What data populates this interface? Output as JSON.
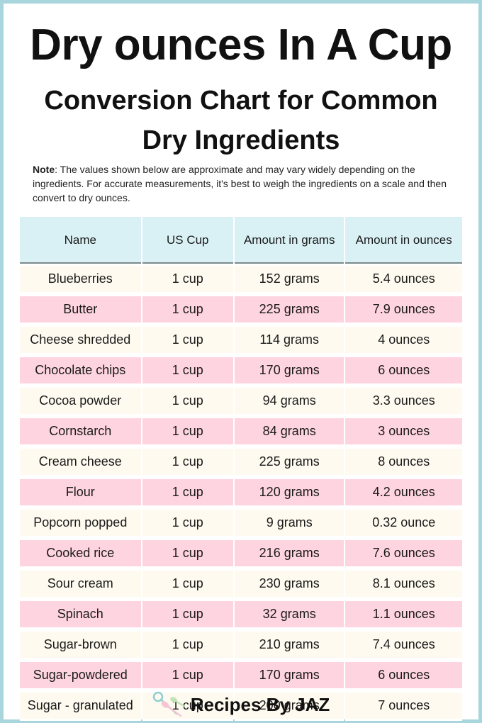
{
  "title": "Dry ounces In A Cup",
  "subtitle_line1": "Conversion Chart for Common",
  "subtitle_line2": "Dry Ingredients",
  "note": {
    "label": "Note",
    "text": ": The values shown below are approximate and may vary widely depending on the ingredients. For accurate measurements, it's best to weigh the ingredients on a scale and then convert to dry ounces."
  },
  "table": {
    "headers": [
      "Name",
      "US Cup",
      "Amount in grams",
      "Amount in ounces"
    ],
    "rows": [
      [
        "Blueberries",
        "1 cup",
        "152 grams",
        "5.4 ounces"
      ],
      [
        "Butter",
        "1 cup",
        "225 grams",
        "7.9 ounces"
      ],
      [
        "Cheese shredded",
        "1 cup",
        "114 grams",
        "4 ounces"
      ],
      [
        "Chocolate chips",
        "1 cup",
        "170 grams",
        "6 ounces"
      ],
      [
        "Cocoa powder",
        "1 cup",
        "94 grams",
        "3.3 ounces"
      ],
      [
        "Cornstarch",
        "1 cup",
        "84 grams",
        "3 ounces"
      ],
      [
        "Cream cheese",
        "1 cup",
        "225 grams",
        "8 ounces"
      ],
      [
        "Flour",
        "1 cup",
        "120 grams",
        "4.2 ounces"
      ],
      [
        "Popcorn popped",
        "1 cup",
        "9 grams",
        "0.32 ounce"
      ],
      [
        "Cooked rice",
        "1 cup",
        "216 grams",
        "7.6 ounces"
      ],
      [
        "Sour cream",
        "1 cup",
        "230 grams",
        "8.1 ounces"
      ],
      [
        "Spinach",
        "1 cup",
        "32 grams",
        "1.1 ounces"
      ],
      [
        "Sugar-brown",
        "1 cup",
        "210 grams",
        "7.4 ounces"
      ],
      [
        "Sugar-powdered",
        "1 cup",
        "170 grams",
        "6 ounces"
      ],
      [
        "Sugar - granulated",
        "1 cup",
        "200 grams",
        "7 ounces"
      ]
    ]
  },
  "footer": {
    "brand": "Recipes By JAZ",
    "icon": "measuring-spoons-icon"
  },
  "colors": {
    "border": "#a9d6dc",
    "header_bg": "#d9f1f5",
    "row_cream": "#fefaef",
    "row_pink": "#fed4e0"
  }
}
